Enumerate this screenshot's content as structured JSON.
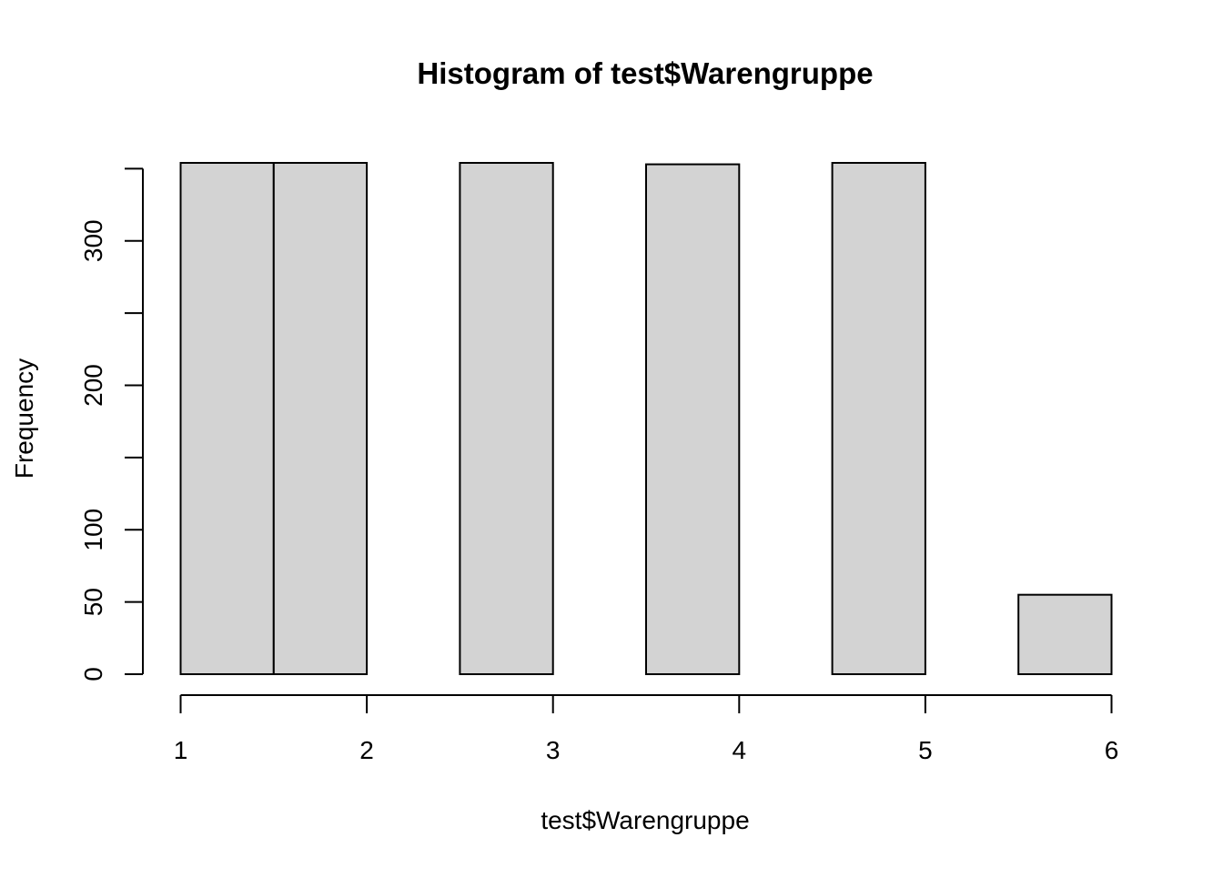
{
  "chart_data": {
    "type": "bar",
    "title": "Histogram of test$Warengruppe",
    "xlabel": "test$Warengruppe",
    "ylabel": "Frequency",
    "bins": [
      {
        "from": 1.0,
        "to": 1.5,
        "count": 354
      },
      {
        "from": 1.5,
        "to": 2.0,
        "count": 354
      },
      {
        "from": 2.0,
        "to": 2.5,
        "count": 0
      },
      {
        "from": 2.5,
        "to": 3.0,
        "count": 354
      },
      {
        "from": 3.0,
        "to": 3.5,
        "count": 0
      },
      {
        "from": 3.5,
        "to": 4.0,
        "count": 353
      },
      {
        "from": 4.0,
        "to": 4.5,
        "count": 0
      },
      {
        "from": 4.5,
        "to": 5.0,
        "count": 354
      },
      {
        "from": 5.0,
        "to": 5.5,
        "count": 0
      },
      {
        "from": 5.5,
        "to": 6.0,
        "count": 55
      }
    ],
    "xlim": [
      1,
      6
    ],
    "ylim": [
      0,
      354
    ],
    "x_ticks": [
      "1",
      "2",
      "3",
      "4",
      "5",
      "6"
    ],
    "y_ticks": [
      {
        "value": 0,
        "label": "0"
      },
      {
        "value": 50,
        "label": "50"
      },
      {
        "value": 100,
        "label": "100"
      },
      {
        "value": 150,
        "label": ""
      },
      {
        "value": 200,
        "label": "200"
      },
      {
        "value": 250,
        "label": ""
      },
      {
        "value": 300,
        "label": "300"
      },
      {
        "value": 350,
        "label": ""
      }
    ],
    "bar_fill": "#d3d3d3",
    "bar_stroke": "#000000",
    "grid": false,
    "legend": "none"
  }
}
